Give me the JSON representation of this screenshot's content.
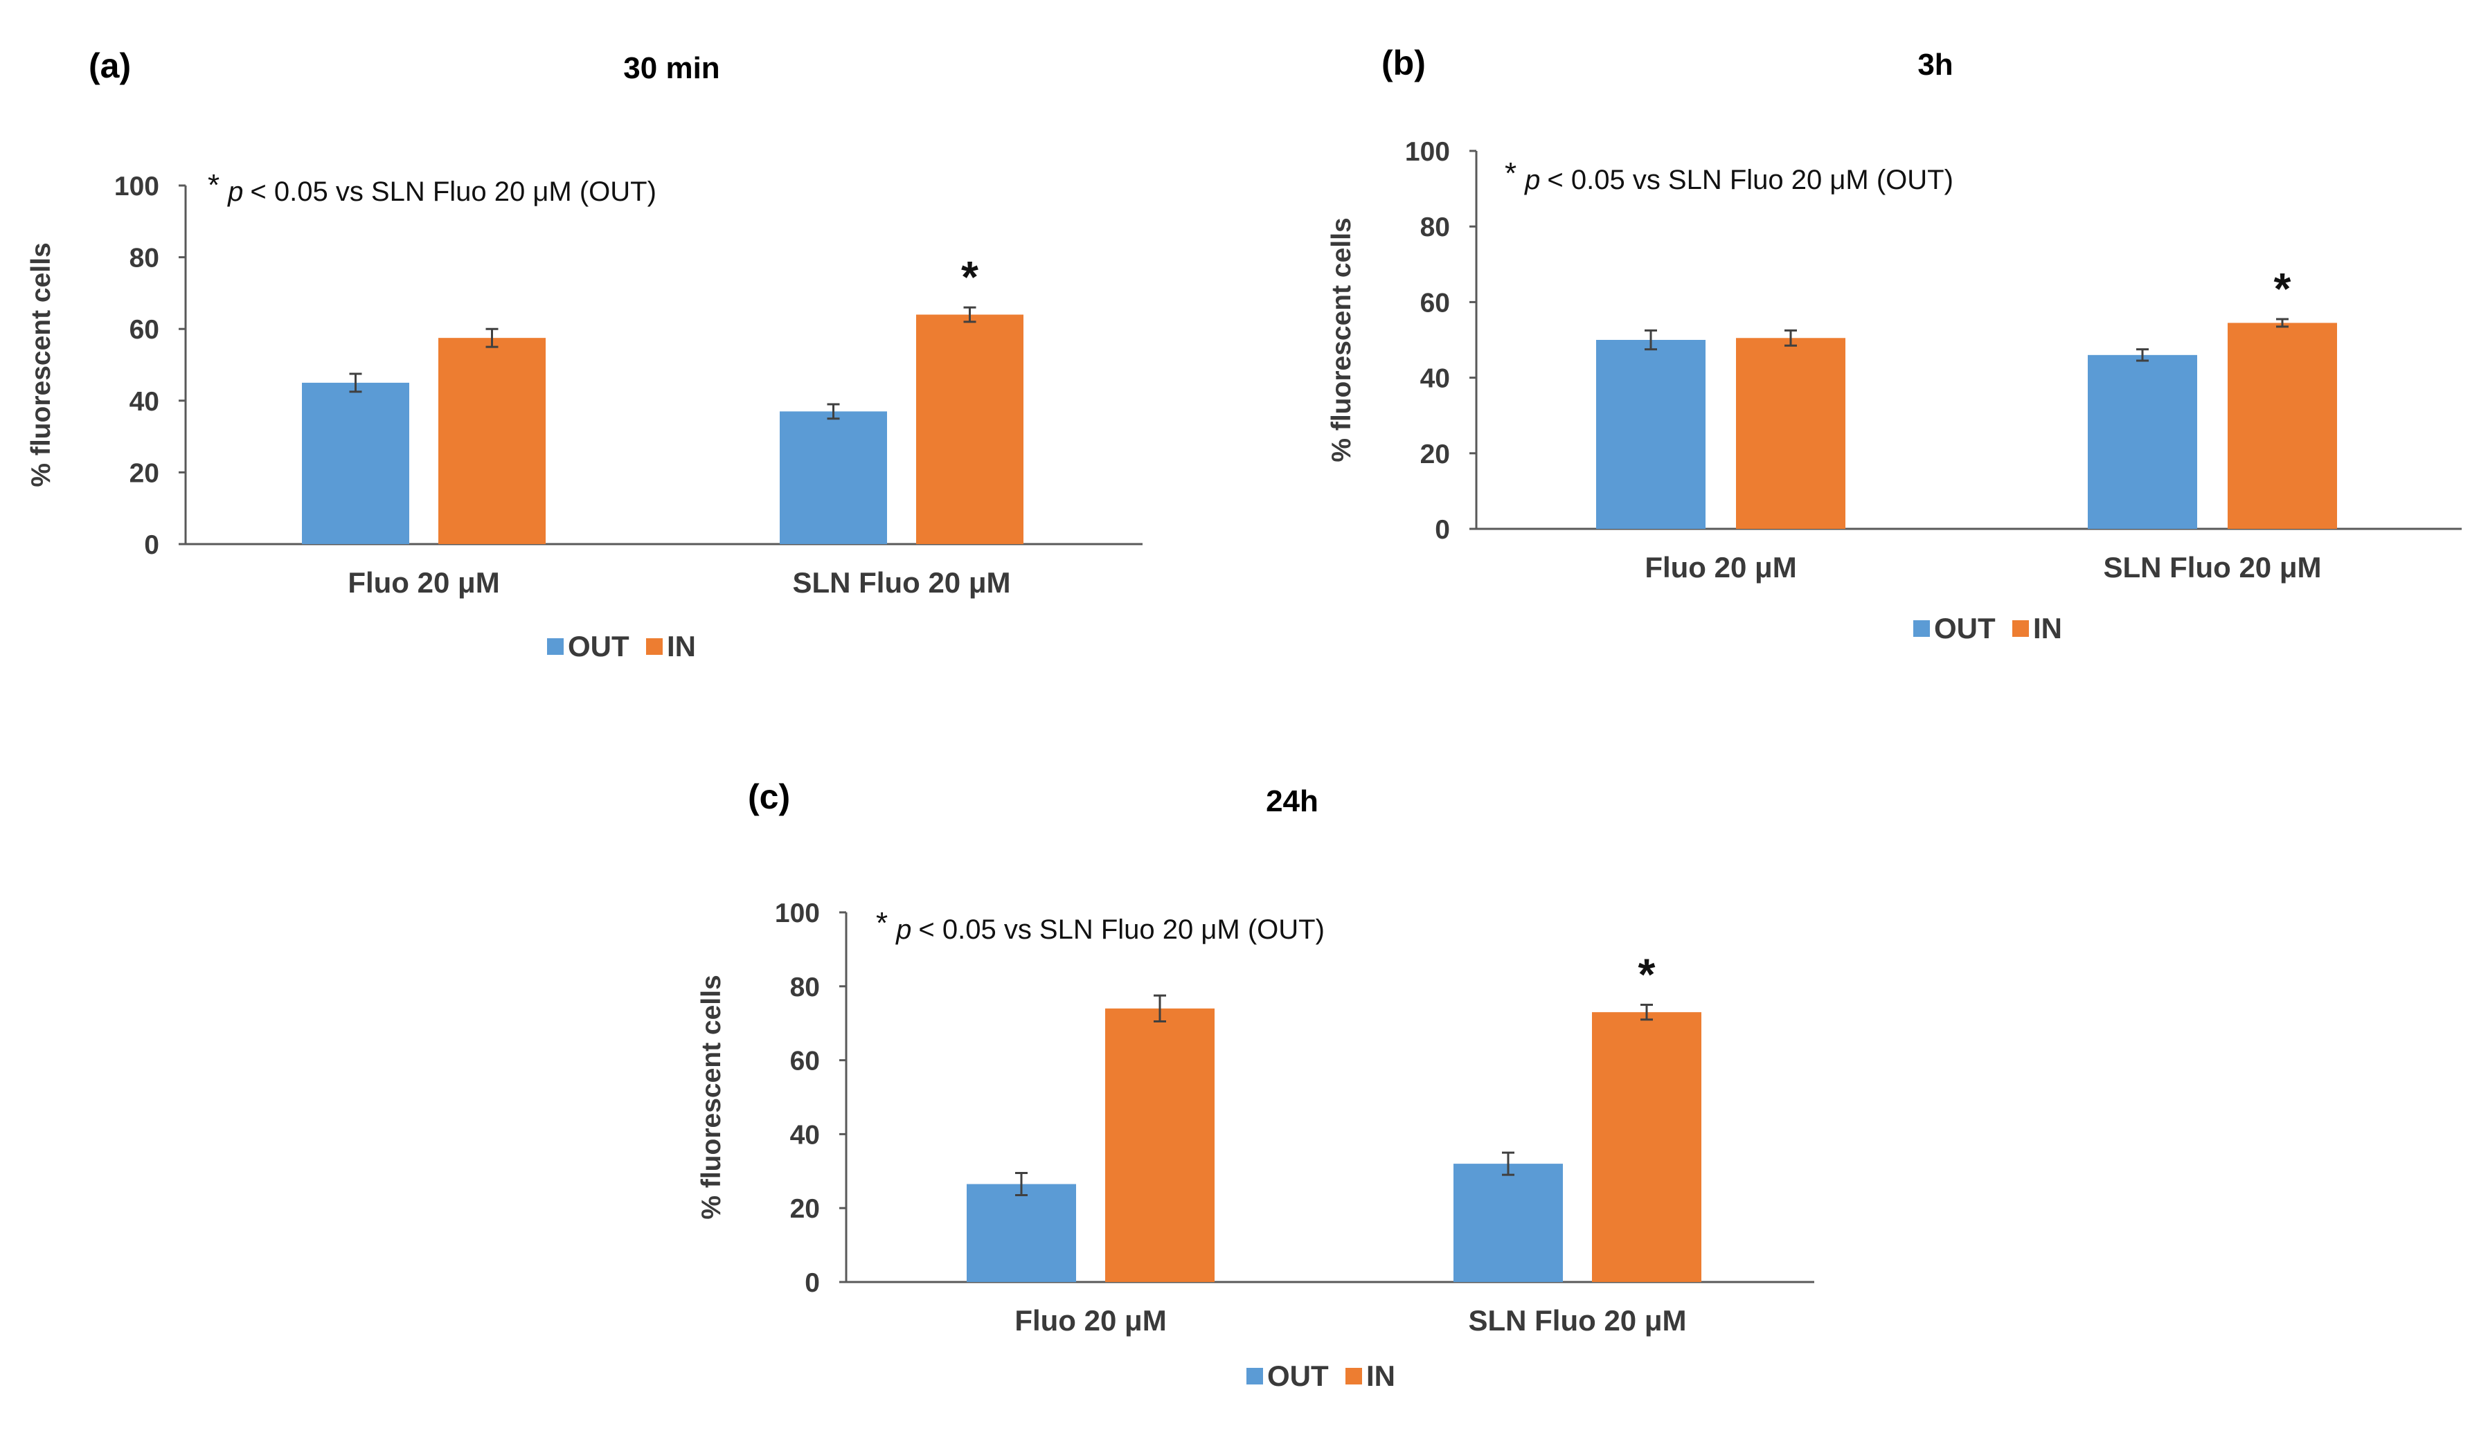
{
  "note_prefix": "p",
  "note_text": "< 0.05 vs SLN Fluo 20 μM (OUT)",
  "star_symbol": "*",
  "colors": {
    "OUT": "#5b9bd5",
    "IN": "#ed7d31",
    "axis": "#595959",
    "error": "#404040"
  },
  "chart_data": [
    {
      "type": "bar",
      "panel": "(a)",
      "title": "30 min",
      "ylabel": "% fluorescent cells",
      "ylim": [
        0,
        100
      ],
      "yticks": [
        0,
        20,
        40,
        60,
        80,
        100
      ],
      "categories": [
        "Fluo 20 μM",
        "SLN Fluo 20 μM"
      ],
      "series": [
        {
          "name": "OUT",
          "values": [
            45,
            37
          ],
          "errors": [
            2.5,
            2
          ]
        },
        {
          "name": "IN",
          "values": [
            57.5,
            64
          ],
          "errors": [
            2.5,
            2
          ]
        }
      ],
      "significance": [
        {
          "category": 1,
          "series": 1,
          "mark": "*"
        }
      ],
      "legend": [
        "OUT",
        "IN"
      ]
    },
    {
      "type": "bar",
      "panel": "(b)",
      "title": "3h",
      "ylabel": "% fluorescent cells",
      "ylim": [
        0,
        100
      ],
      "yticks": [
        0,
        20,
        40,
        60,
        80,
        100
      ],
      "categories": [
        "Fluo 20 μM",
        "SLN Fluo 20 μM"
      ],
      "series": [
        {
          "name": "OUT",
          "values": [
            50,
            46
          ],
          "errors": [
            2.5,
            1.5
          ]
        },
        {
          "name": "IN",
          "values": [
            50.5,
            54.5
          ],
          "errors": [
            2.0,
            1.0
          ]
        }
      ],
      "significance": [
        {
          "category": 1,
          "series": 1,
          "mark": "*"
        }
      ],
      "legend": [
        "OUT",
        "IN"
      ]
    },
    {
      "type": "bar",
      "panel": "(c)",
      "title": "24h",
      "ylabel": "% fluorescent cells",
      "ylim": [
        0,
        100
      ],
      "yticks": [
        0,
        20,
        40,
        60,
        80,
        100
      ],
      "categories": [
        "Fluo 20 μM",
        "SLN Fluo 20 μM"
      ],
      "series": [
        {
          "name": "OUT",
          "values": [
            26.5,
            32
          ],
          "errors": [
            3,
            3
          ]
        },
        {
          "name": "IN",
          "values": [
            74,
            73
          ],
          "errors": [
            3.5,
            2
          ]
        }
      ],
      "significance": [
        {
          "category": 1,
          "series": 1,
          "mark": "*"
        }
      ],
      "legend": [
        "OUT",
        "IN"
      ]
    }
  ]
}
